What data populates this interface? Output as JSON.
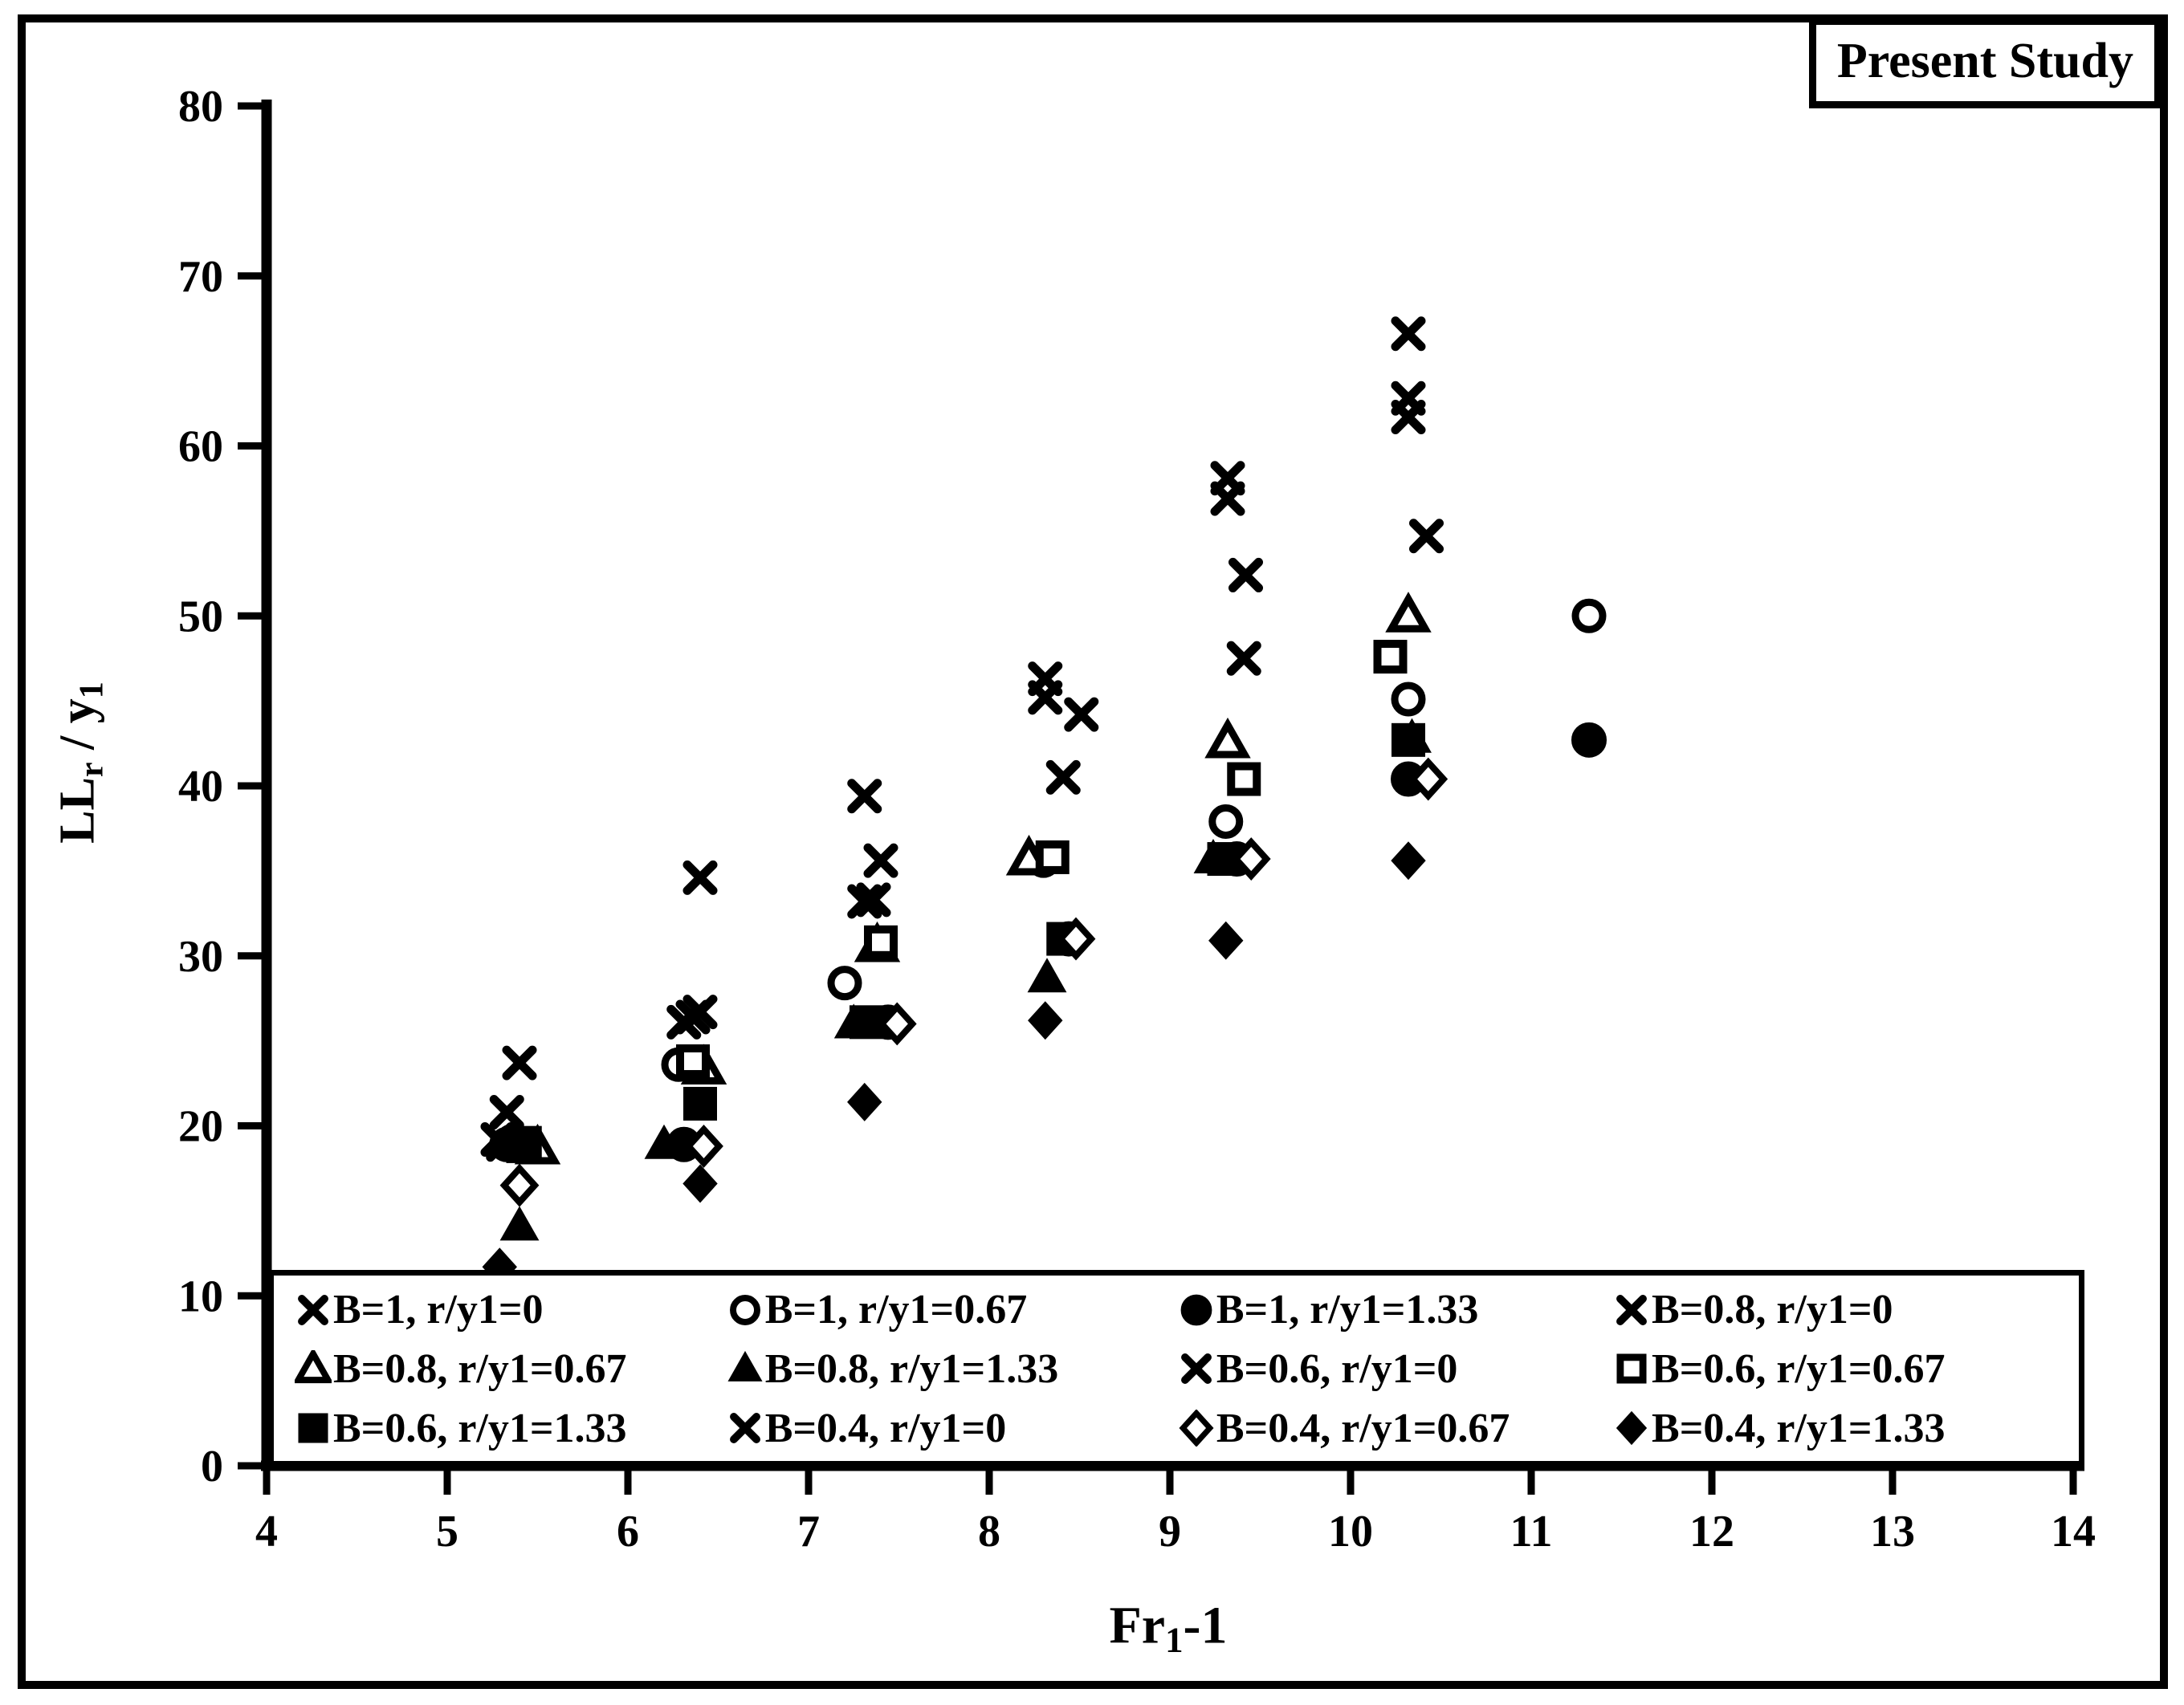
{
  "title_box": {
    "label": "Present Study"
  },
  "chart_data": {
    "type": "scatter",
    "title": "Present Study",
    "xlabel": "Fr1-1",
    "xlabel_parts": {
      "base": "Fr",
      "sub": "1",
      "suffix": "-1"
    },
    "ylabel": "Lr / y1",
    "ylabel_parts": {
      "base": "L",
      "sub": "r",
      "mid": " / y",
      "sub2": "1"
    },
    "xlim": [
      4,
      14
    ],
    "ylim": [
      0,
      80
    ],
    "xticks": [
      4,
      5,
      6,
      7,
      8,
      9,
      10,
      11,
      12,
      13,
      14
    ],
    "yticks": [
      0,
      10,
      20,
      30,
      40,
      50,
      60,
      70,
      80
    ],
    "grid": false,
    "legend_position": "bottom-inside",
    "marker_color": "#000000",
    "background": "#ffffff",
    "series": [
      {
        "label": "B=1, r/y1=0",
        "marker": "x",
        "filled": true,
        "points": [
          [
            5.4,
            23.7
          ],
          [
            6.4,
            34.6
          ],
          [
            7.31,
            39.4
          ],
          [
            8.31,
            46.3
          ],
          [
            9.32,
            58.1
          ],
          [
            10.32,
            66.6
          ]
        ]
      },
      {
        "label": "B=1, r/y1=0.67",
        "marker": "circle",
        "filled": false,
        "points": [
          [
            5.36,
            19.1
          ],
          [
            6.28,
            23.6
          ],
          [
            7.2,
            28.4
          ],
          [
            8.3,
            35.6
          ],
          [
            9.31,
            37.9
          ],
          [
            10.32,
            45.1
          ],
          [
            11.32,
            50.0
          ]
        ]
      },
      {
        "label": "B=1, r/y1=1.33",
        "marker": "circle",
        "filled": true,
        "points": [
          [
            5.33,
            18.9
          ],
          [
            6.31,
            18.9
          ],
          [
            7.44,
            26.1
          ],
          [
            8.44,
            31.0
          ],
          [
            9.37,
            35.7
          ],
          [
            10.32,
            40.4
          ],
          [
            11.32,
            42.7
          ]
        ]
      },
      {
        "label": "B=0.8, r/y1=0",
        "marker": "x",
        "filled": true,
        "points": [
          [
            5.33,
            20.8
          ],
          [
            6.4,
            26.7
          ],
          [
            7.4,
            35.6
          ],
          [
            8.31,
            45.2
          ],
          [
            9.32,
            56.9
          ],
          [
            10.32,
            62.8
          ]
        ]
      },
      {
        "label": "B=0.8, r/y1=0.67",
        "marker": "triangle",
        "filled": false,
        "points": [
          [
            5.5,
            18.7
          ],
          [
            6.42,
            23.4
          ],
          [
            7.38,
            30.6
          ],
          [
            8.22,
            35.7
          ],
          [
            9.32,
            42.6
          ],
          [
            10.32,
            50.0
          ]
        ]
      },
      {
        "label": "B=0.8, r/y1=1.33",
        "marker": "triangle",
        "filled": true,
        "points": [
          [
            5.4,
            14.1
          ],
          [
            6.2,
            18.9
          ],
          [
            7.25,
            26.0
          ],
          [
            8.32,
            28.7
          ],
          [
            9.24,
            35.7
          ],
          [
            10.34,
            42.8
          ]
        ]
      },
      {
        "label": "B=0.6, r/y1=0",
        "marker": "x",
        "filled": true,
        "points": [
          [
            5.28,
            19.2
          ],
          [
            6.31,
            26.1
          ],
          [
            7.31,
            33.2
          ],
          [
            8.51,
            44.2
          ],
          [
            9.42,
            52.4
          ],
          [
            10.32,
            61.7
          ]
        ]
      },
      {
        "label": "B=0.6, r/y1=0.67",
        "marker": "square",
        "filled": false,
        "points": [
          [
            5.43,
            19.0
          ],
          [
            6.36,
            23.8
          ],
          [
            7.4,
            30.8
          ],
          [
            8.35,
            35.8
          ],
          [
            9.41,
            40.4
          ],
          [
            10.22,
            47.6
          ]
        ]
      },
      {
        "label": "B=0.6, r/y1=1.33",
        "marker": "square",
        "filled": true,
        "points": [
          [
            5.42,
            18.8
          ],
          [
            6.4,
            21.3
          ],
          [
            7.32,
            26.1
          ],
          [
            8.41,
            31.0
          ],
          [
            9.3,
            35.7
          ],
          [
            10.32,
            42.7
          ]
        ]
      },
      {
        "label": "B=0.4, r/y1=0",
        "marker": "x",
        "filled": true,
        "points": [
          [
            5.31,
            18.9
          ],
          [
            6.36,
            26.4
          ],
          [
            7.36,
            33.3
          ],
          [
            8.41,
            40.5
          ],
          [
            9.41,
            47.5
          ],
          [
            10.42,
            54.7
          ]
        ]
      },
      {
        "label": "B=0.4, r/y1=0.67",
        "marker": "diamond",
        "filled": false,
        "points": [
          [
            5.4,
            16.5
          ],
          [
            6.42,
            18.8
          ],
          [
            7.49,
            26.0
          ],
          [
            8.48,
            31.0
          ],
          [
            9.45,
            35.7
          ],
          [
            10.43,
            40.4
          ]
        ]
      },
      {
        "label": "B=0.4, r/y1=1.33",
        "marker": "diamond",
        "filled": true,
        "points": [
          [
            5.29,
            11.7
          ],
          [
            6.4,
            16.6
          ],
          [
            7.31,
            21.4
          ],
          [
            8.31,
            26.2
          ],
          [
            9.31,
            30.9
          ],
          [
            10.32,
            35.6
          ]
        ]
      }
    ]
  }
}
